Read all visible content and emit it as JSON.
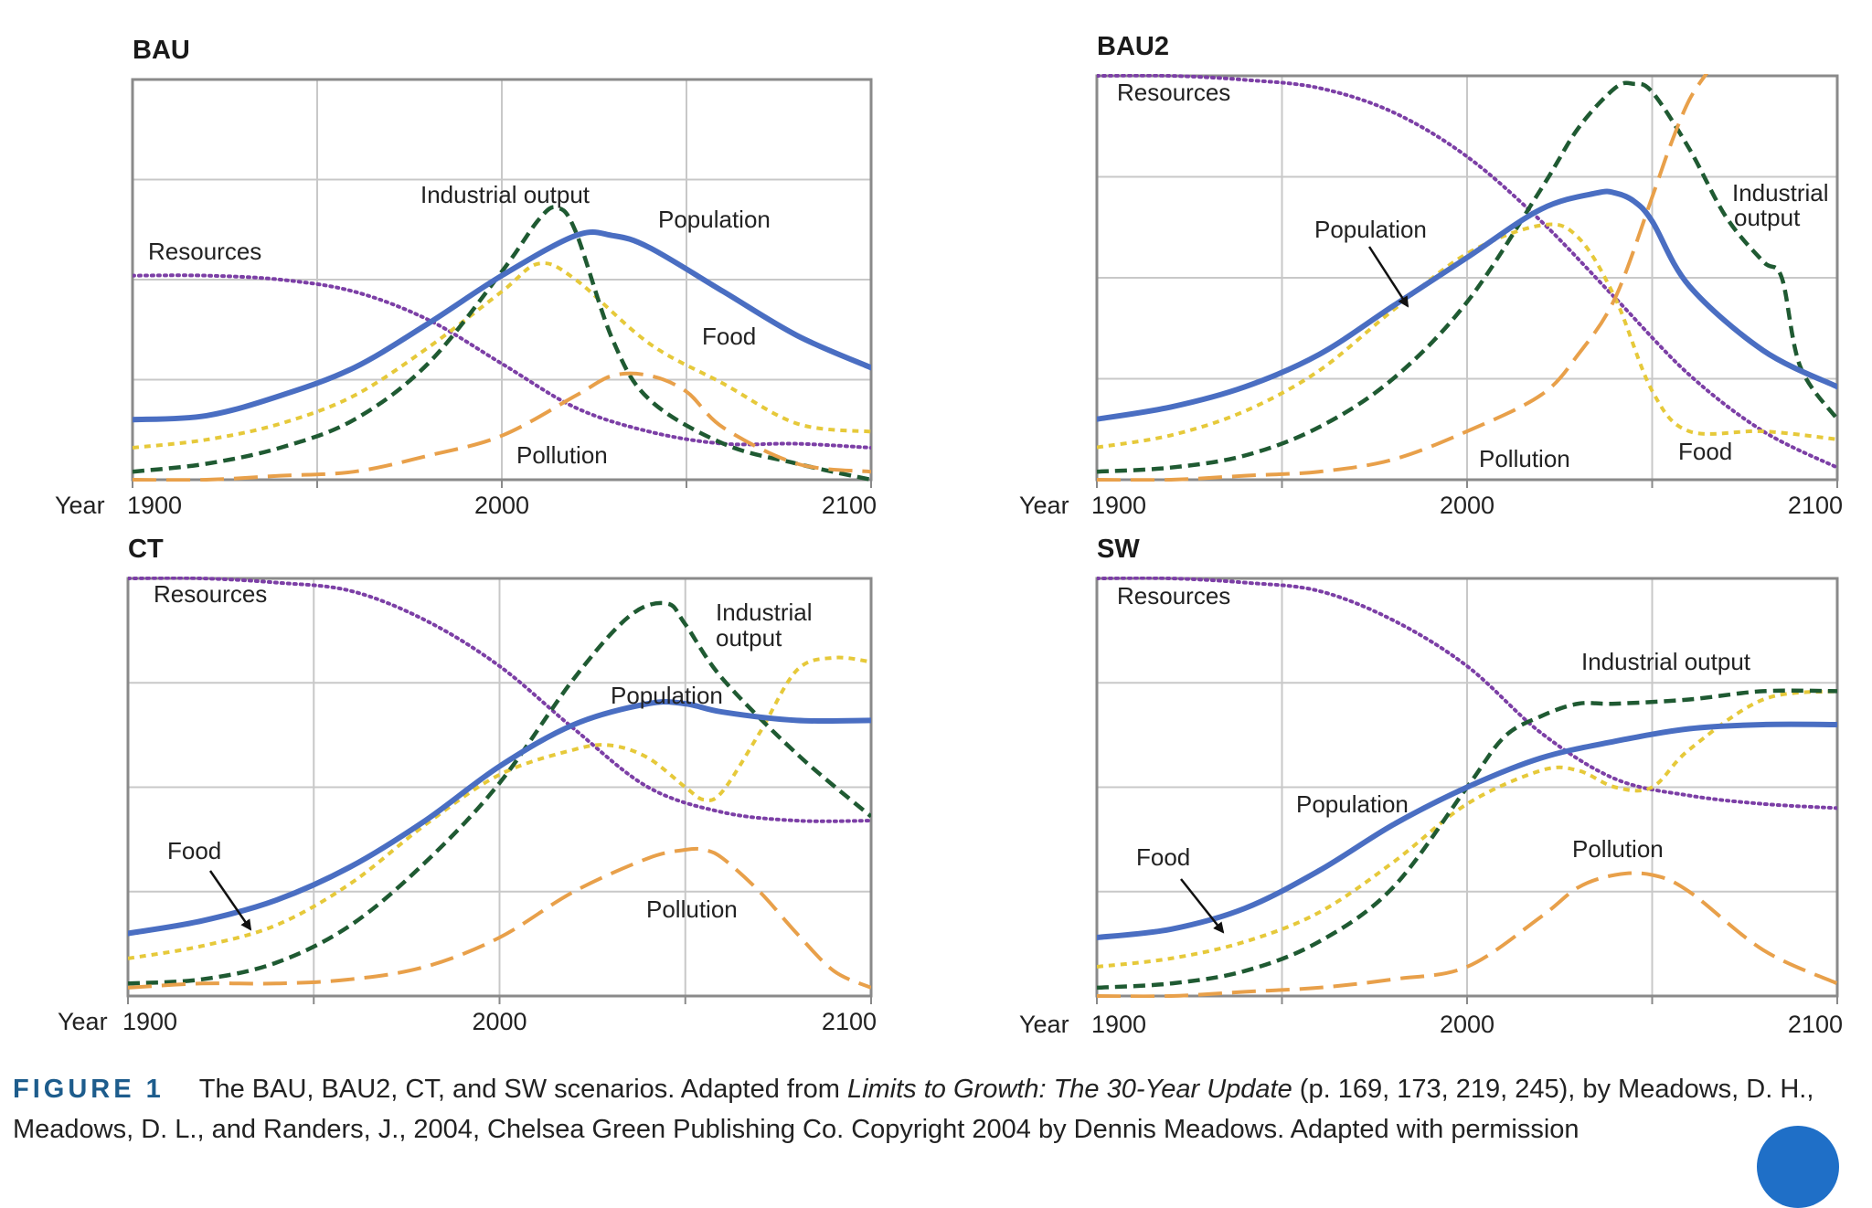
{
  "colors": {
    "population": "#4a6ec2",
    "resources": "#7c3fa6",
    "industrial": "#1f5a32",
    "food": "#e6c93a",
    "pollution": "#e8a04a",
    "grid": "#c8c8c8",
    "frame": "#8a8a8a"
  },
  "caption": {
    "label": "FIGURE 1",
    "text_before": "The BAU, BAU2, CT, and SW scenarios. Adapted from ",
    "book_title": "Limits to Growth: The 30-Year Update",
    "text_after": " (p. 169, 173, 219, 245), by Meadows, D. H., Meadows, D. L., and Randers, J., 2004, Chelsea Green Publishing Co. Copyright 2004 by Dennis Meadows. Adapted with permission"
  },
  "chart_data": [
    {
      "type": "line",
      "title": "BAU",
      "xlabel": "Year",
      "x_ticks": [
        "1900",
        "2000",
        "2100"
      ],
      "xlim": [
        1900,
        2100
      ],
      "ylim": [
        0,
        1
      ],
      "grid": true,
      "series": [
        {
          "name": "Resources",
          "key": "resources",
          "x": [
            1900,
            1920,
            1940,
            1960,
            1980,
            2000,
            2020,
            2040,
            2060,
            2080,
            2100
          ],
          "values": [
            0.51,
            0.51,
            0.5,
            0.47,
            0.4,
            0.29,
            0.18,
            0.12,
            0.09,
            0.09,
            0.08
          ]
        },
        {
          "name": "Food",
          "key": "food",
          "x": [
            1900,
            1920,
            1940,
            1960,
            1980,
            2000,
            2010,
            2020,
            2040,
            2060,
            2080,
            2100
          ],
          "values": [
            0.08,
            0.1,
            0.14,
            0.21,
            0.33,
            0.47,
            0.54,
            0.5,
            0.34,
            0.24,
            0.14,
            0.12
          ]
        },
        {
          "name": "Industrial output",
          "key": "industrial",
          "x": [
            1900,
            1920,
            1940,
            1960,
            1980,
            2000,
            2010,
            2015,
            2020,
            2030,
            2040,
            2060,
            2080,
            2100
          ],
          "values": [
            0.02,
            0.04,
            0.08,
            0.15,
            0.29,
            0.52,
            0.65,
            0.68,
            0.62,
            0.35,
            0.2,
            0.09,
            0.04,
            0.0
          ]
        },
        {
          "name": "Population",
          "key": "population",
          "x": [
            1900,
            1920,
            1940,
            1960,
            1980,
            2000,
            2020,
            2030,
            2040,
            2060,
            2080,
            2100
          ],
          "values": [
            0.15,
            0.16,
            0.21,
            0.28,
            0.39,
            0.51,
            0.61,
            0.61,
            0.58,
            0.47,
            0.36,
            0.28
          ]
        },
        {
          "name": "Pollution",
          "key": "pollution",
          "x": [
            1900,
            1920,
            1940,
            1960,
            1980,
            2000,
            2020,
            2030,
            2040,
            2050,
            2060,
            2080,
            2100
          ],
          "values": [
            0.0,
            0.0,
            0.01,
            0.02,
            0.06,
            0.11,
            0.21,
            0.26,
            0.26,
            0.22,
            0.13,
            0.04,
            0.02
          ]
        }
      ],
      "annotations": [
        {
          "text": "Industrial output",
          "key": "industrial"
        },
        {
          "text": "Population",
          "key": "population"
        },
        {
          "text": "Resources",
          "key": "resources"
        },
        {
          "text": "Food",
          "key": "food"
        },
        {
          "text": "Pollution",
          "key": "pollution"
        }
      ]
    },
    {
      "type": "line",
      "title": "BAU2",
      "xlabel": "Year",
      "x_ticks": [
        "1900",
        "2000",
        "2100"
      ],
      "xlim": [
        1900,
        2100
      ],
      "ylim": [
        0,
        1
      ],
      "grid": true,
      "series": [
        {
          "name": "Resources",
          "key": "resources",
          "x": [
            1900,
            1920,
            1940,
            1960,
            1980,
            2000,
            2020,
            2040,
            2060,
            2080,
            2100
          ],
          "values": [
            1.0,
            1.0,
            0.99,
            0.97,
            0.91,
            0.8,
            0.64,
            0.45,
            0.26,
            0.12,
            0.03
          ]
        },
        {
          "name": "Industrial output",
          "key": "industrial",
          "x": [
            1900,
            1920,
            1940,
            1960,
            1980,
            2000,
            2020,
            2030,
            2040,
            2045,
            2050,
            2060,
            2070,
            2080,
            2085,
            2090,
            2100
          ],
          "values": [
            0.02,
            0.03,
            0.06,
            0.13,
            0.25,
            0.44,
            0.72,
            0.87,
            0.97,
            0.98,
            0.96,
            0.82,
            0.65,
            0.54,
            0.5,
            0.28,
            0.15
          ]
        },
        {
          "name": "Population",
          "key": "population",
          "x": [
            1900,
            1920,
            1940,
            1960,
            1980,
            2000,
            2020,
            2035,
            2040,
            2045,
            2050,
            2060,
            2080,
            2100
          ],
          "values": [
            0.15,
            0.18,
            0.23,
            0.31,
            0.43,
            0.55,
            0.67,
            0.71,
            0.71,
            0.69,
            0.64,
            0.48,
            0.32,
            0.23
          ]
        },
        {
          "name": "Food",
          "key": "food",
          "x": [
            1900,
            1920,
            1940,
            1960,
            1980,
            2000,
            2020,
            2030,
            2040,
            2050,
            2060,
            2080,
            2100
          ],
          "values": [
            0.08,
            0.11,
            0.17,
            0.27,
            0.42,
            0.56,
            0.63,
            0.6,
            0.45,
            0.22,
            0.12,
            0.12,
            0.1
          ]
        },
        {
          "name": "Pollution",
          "key": "pollution",
          "x": [
            1900,
            1920,
            1940,
            1960,
            1980,
            2000,
            2020,
            2030,
            2040,
            2050,
            2055,
            2060,
            2065
          ],
          "values": [
            0.0,
            0.0,
            0.01,
            0.02,
            0.05,
            0.12,
            0.21,
            0.31,
            0.45,
            0.7,
            0.83,
            0.94,
            1.01
          ]
        }
      ],
      "annotations": [
        {
          "text": "Resources",
          "key": "resources"
        },
        {
          "text": "Industrial",
          "key": "industrial"
        },
        {
          "text": "output",
          "key": "industrial"
        },
        {
          "text": "Population",
          "key": "population"
        },
        {
          "text": "Food",
          "key": "food"
        },
        {
          "text": "Pollution",
          "key": "pollution"
        }
      ]
    },
    {
      "type": "line",
      "title": "CT",
      "xlabel": "Year",
      "x_ticks": [
        "1900",
        "2000",
        "2100"
      ],
      "xlim": [
        1900,
        2100
      ],
      "ylim": [
        0,
        1
      ],
      "grid": true,
      "series": [
        {
          "name": "Resources",
          "key": "resources",
          "x": [
            1900,
            1920,
            1940,
            1960,
            1980,
            2000,
            2020,
            2040,
            2060,
            2080,
            2100
          ],
          "values": [
            1.0,
            1.0,
            0.99,
            0.97,
            0.9,
            0.79,
            0.64,
            0.5,
            0.44,
            0.42,
            0.42
          ]
        },
        {
          "name": "Industrial output",
          "key": "industrial",
          "x": [
            1900,
            1920,
            1940,
            1960,
            1980,
            2000,
            2020,
            2035,
            2045,
            2050,
            2060,
            2080,
            2100
          ],
          "values": [
            0.03,
            0.04,
            0.08,
            0.17,
            0.32,
            0.51,
            0.76,
            0.91,
            0.94,
            0.89,
            0.76,
            0.58,
            0.43
          ]
        },
        {
          "name": "Population",
          "key": "population",
          "x": [
            1900,
            1920,
            1940,
            1960,
            1980,
            2000,
            2020,
            2040,
            2050,
            2060,
            2080,
            2100
          ],
          "values": [
            0.15,
            0.18,
            0.23,
            0.31,
            0.42,
            0.55,
            0.65,
            0.7,
            0.7,
            0.68,
            0.66,
            0.66
          ]
        },
        {
          "name": "Food",
          "key": "food",
          "x": [
            1900,
            1920,
            1940,
            1960,
            1980,
            2000,
            2020,
            2030,
            2040,
            2050,
            2055,
            2060,
            2070,
            2080,
            2090,
            2100
          ],
          "values": [
            0.09,
            0.12,
            0.17,
            0.27,
            0.41,
            0.53,
            0.59,
            0.6,
            0.57,
            0.5,
            0.47,
            0.49,
            0.63,
            0.78,
            0.81,
            0.8
          ]
        },
        {
          "name": "Pollution",
          "key": "pollution",
          "x": [
            1900,
            1920,
            1940,
            1960,
            1980,
            2000,
            2020,
            2040,
            2050,
            2055,
            2060,
            2070,
            2080,
            2090,
            2100
          ],
          "values": [
            0.02,
            0.03,
            0.03,
            0.04,
            0.07,
            0.14,
            0.25,
            0.33,
            0.35,
            0.35,
            0.33,
            0.25,
            0.15,
            0.06,
            0.02
          ]
        }
      ],
      "annotations": [
        {
          "text": "Resources",
          "key": "resources"
        },
        {
          "text": "Industrial",
          "key": "industrial"
        },
        {
          "text": "output",
          "key": "industrial"
        },
        {
          "text": "Population",
          "key": "population"
        },
        {
          "text": "Food",
          "key": "food"
        },
        {
          "text": "Pollution",
          "key": "pollution"
        }
      ]
    },
    {
      "type": "line",
      "title": "SW",
      "xlabel": "Year",
      "x_ticks": [
        "1900",
        "2000",
        "2100"
      ],
      "xlim": [
        1900,
        2100
      ],
      "ylim": [
        0,
        1
      ],
      "grid": true,
      "series": [
        {
          "name": "Resources",
          "key": "resources",
          "x": [
            1900,
            1920,
            1940,
            1960,
            1980,
            2000,
            2020,
            2040,
            2060,
            2080,
            2100
          ],
          "values": [
            1.0,
            1.0,
            0.99,
            0.97,
            0.9,
            0.79,
            0.63,
            0.52,
            0.48,
            0.46,
            0.45
          ]
        },
        {
          "name": "Industrial output",
          "key": "industrial",
          "x": [
            1900,
            1920,
            1940,
            1960,
            1980,
            2000,
            2010,
            2020,
            2030,
            2040,
            2060,
            2080,
            2100
          ],
          "values": [
            0.02,
            0.03,
            0.06,
            0.13,
            0.26,
            0.5,
            0.62,
            0.67,
            0.7,
            0.7,
            0.71,
            0.73,
            0.73
          ]
        },
        {
          "name": "Population",
          "key": "population",
          "x": [
            1900,
            1920,
            1940,
            1960,
            1980,
            2000,
            2020,
            2040,
            2060,
            2080,
            2100
          ],
          "values": [
            0.14,
            0.16,
            0.21,
            0.3,
            0.41,
            0.5,
            0.57,
            0.61,
            0.64,
            0.65,
            0.65
          ]
        },
        {
          "name": "Food",
          "key": "food",
          "x": [
            1900,
            1920,
            1940,
            1960,
            1980,
            2000,
            2020,
            2030,
            2040,
            2050,
            2060,
            2080,
            2100
          ],
          "values": [
            0.07,
            0.09,
            0.13,
            0.2,
            0.32,
            0.46,
            0.54,
            0.54,
            0.5,
            0.5,
            0.59,
            0.71,
            0.73
          ]
        },
        {
          "name": "Pollution",
          "key": "pollution",
          "x": [
            1900,
            1920,
            1940,
            1960,
            1980,
            2000,
            2020,
            2030,
            2040,
            2050,
            2060,
            2080,
            2100
          ],
          "values": [
            0.0,
            0.0,
            0.01,
            0.02,
            0.04,
            0.07,
            0.19,
            0.26,
            0.29,
            0.29,
            0.25,
            0.11,
            0.03
          ]
        }
      ],
      "annotations": [
        {
          "text": "Resources",
          "key": "resources"
        },
        {
          "text": "Industrial output",
          "key": "industrial"
        },
        {
          "text": "Population",
          "key": "population"
        },
        {
          "text": "Food",
          "key": "food"
        },
        {
          "text": "Pollution",
          "key": "pollution"
        }
      ]
    }
  ]
}
